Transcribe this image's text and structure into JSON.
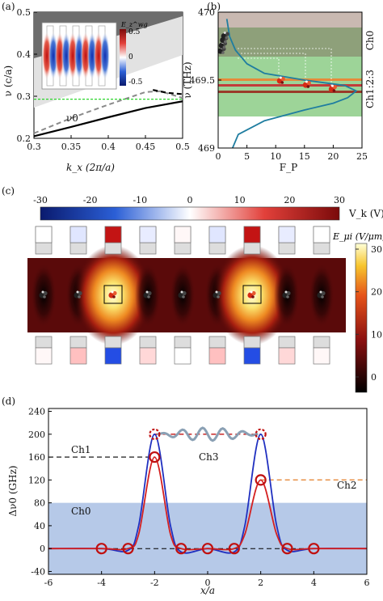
{
  "panels": {
    "a": "(a)",
    "b": "(b)",
    "c": "(c)",
    "d": "(d)"
  },
  "chart_data": [
    {
      "id": "a",
      "type": "line",
      "xlabel": "k_x (2π/a)",
      "ylabel": "ν (c/a)",
      "xlim": [
        0.3,
        0.5
      ],
      "ylim": [
        0.2,
        0.5
      ],
      "xticks": [
        "0.3",
        "0.35",
        "0.4",
        "0.45",
        "0.5"
      ],
      "yticks": [
        "0.2",
        "0.3",
        "0.4",
        "0.5"
      ],
      "annotations": [
        "ν0"
      ],
      "inset": {
        "label": "E_z^wg",
        "colorbar_ticks": [
          "0.5",
          "0",
          "-0.5"
        ]
      },
      "series": [
        {
          "style": "black solid",
          "x": [
            0.3,
            0.35,
            0.4,
            0.45,
            0.5
          ],
          "y": [
            0.205,
            0.227,
            0.25,
            0.272,
            0.288
          ]
        },
        {
          "style": "gray dashed",
          "x": [
            0.3,
            0.35,
            0.4,
            0.45,
            0.47,
            0.5
          ],
          "y": [
            0.212,
            0.248,
            0.28,
            0.31,
            0.312,
            0.296
          ]
        },
        {
          "style": "black dashed",
          "x": [
            0.46,
            0.48,
            0.5
          ],
          "y": [
            0.315,
            0.308,
            0.305
          ]
        },
        {
          "style": "green dashed",
          "x": [
            0.3,
            0.5
          ],
          "y": [
            0.293,
            0.293
          ]
        }
      ]
    },
    {
      "id": "b",
      "type": "line",
      "xlabel": "F_P",
      "ylabel": "ν (THz)",
      "xlim": [
        0,
        25
      ],
      "ylim": [
        469,
        470
      ],
      "xticks": [
        "0",
        "5",
        "10",
        "15",
        "20",
        "25"
      ],
      "yticks": [
        "469",
        "469.5",
        "470"
      ],
      "band_labels": [
        "Ch0",
        "Ch1:2:3"
      ],
      "series": [
        {
          "name": "",
          "x": [
            2.5,
            3.5,
            8,
            15,
            20,
            22.5,
            24,
            22,
            15,
            8,
            5,
            3,
            2,
            1.5
          ],
          "y": [
            469.0,
            469.1,
            469.2,
            469.28,
            469.33,
            469.37,
            469.42,
            469.46,
            469.5,
            469.55,
            469.62,
            469.72,
            469.82,
            469.95
          ]
        }
      ],
      "atoms": [
        {
          "x": 0.7,
          "y": 469.72
        },
        {
          "x": 0.9,
          "y": 469.76
        },
        {
          "x": 1.1,
          "y": 469.8
        },
        {
          "x": 1.3,
          "y": 469.83
        },
        {
          "x": 11,
          "y": 469.5
        },
        {
          "x": 15.5,
          "y": 469.47
        },
        {
          "x": 20,
          "y": 469.44
        }
      ]
    },
    {
      "id": "c",
      "type": "heatmap",
      "colorbar_top": {
        "label": "V_k (V)",
        "ticks": [
          "-30",
          "-20",
          "-10",
          "0",
          "10",
          "20",
          "30"
        ]
      },
      "colorbar_right": {
        "label": "E_μi (V/μm)",
        "ticks": [
          "30",
          "20",
          "10",
          "0"
        ]
      },
      "electrodes_top_V": [
        0,
        -4,
        30,
        -3,
        1,
        -4,
        30,
        -3,
        0
      ],
      "electrodes_bottom_V": [
        1,
        8,
        -28,
        5,
        0,
        8,
        -28,
        5,
        1
      ]
    },
    {
      "id": "d",
      "type": "line",
      "xlabel": "x/a",
      "ylabel": "Δν0 (GHz)",
      "xlim": [
        -6,
        6
      ],
      "ylim": [
        -45,
        245
      ],
      "xticks": [
        "-6",
        "-4",
        "-2",
        "0",
        "2",
        "4",
        "6"
      ],
      "yticks": [
        "240",
        "200",
        "160",
        "120",
        "80",
        "40",
        "0",
        "-40"
      ],
      "channel_labels": [
        "Ch0",
        "Ch1",
        "Ch2",
        "Ch3"
      ],
      "series": [
        {
          "name": "",
          "color": "#d42020",
          "x": [
            -6,
            -4,
            -3,
            -2.6,
            -2,
            -1.4,
            -1,
            0,
            1,
            1.4,
            2,
            2.6,
            3,
            4,
            6
          ],
          "y": [
            0,
            0,
            0,
            25,
            160,
            25,
            0,
            0,
            0,
            25,
            120,
            25,
            0,
            0,
            0
          ]
        },
        {
          "name": "",
          "color": "#2030c0",
          "x": [
            -6,
            -4,
            -3,
            -2.6,
            -2,
            -1.4,
            -1,
            0,
            1,
            1.4,
            2,
            2.6,
            3,
            4,
            6
          ],
          "y": [
            0,
            0,
            -3,
            40,
            200,
            40,
            -6,
            0,
            -6,
            40,
            200,
            40,
            -3,
            0,
            0
          ]
        }
      ],
      "markers_red": [
        [
          -4,
          0
        ],
        [
          -3,
          0
        ],
        [
          -2,
          160
        ],
        [
          -1,
          0
        ],
        [
          0,
          0
        ],
        [
          1,
          0
        ],
        [
          2,
          120
        ],
        [
          3,
          0
        ],
        [
          4,
          0
        ]
      ],
      "markers_dashed": [
        [
          -2,
          200
        ],
        [
          2,
          200
        ]
      ]
    }
  ],
  "colors": {
    "wg_blue": "#1f6fb5",
    "band_green": "#7cc576",
    "band_gray": "#c9b9b1",
    "shade_blue": "#b6c9e8"
  }
}
